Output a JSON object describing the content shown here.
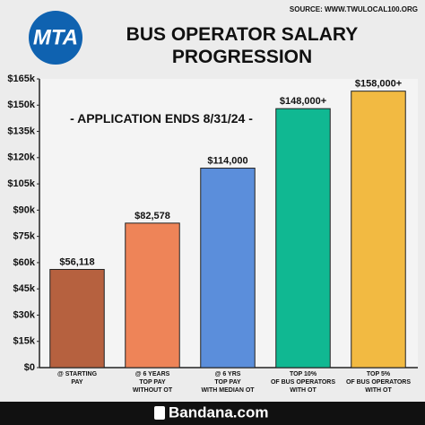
{
  "chart_data": {
    "type": "bar",
    "title": "BUS OPERATOR SALARY\nPROGRESSION",
    "source": "SOURCE: WWW.TWULOCAL100.ORG",
    "logo": "MTA",
    "annotation": "- APPLICATION ENDS 8/31/24 -",
    "footer": "Bandana.com",
    "categories": [
      "@ STARTING\nPAY",
      "@ 6 YEARS\nTOP PAY\nWITHOUT OT",
      "@ 6 YRS\nTOP PAY\nWITH MEDIAN OT",
      "TOP 10%\nOF BUS OPERATORS\nWITH OT",
      "TOP 5%\nOF BUS OPERATORS\nWITH OT"
    ],
    "values": [
      56118,
      82578,
      114000,
      148000,
      158000
    ],
    "value_labels": [
      "$56,118",
      "$82,578",
      "$114,000",
      "$148,000+",
      "$158,000+"
    ],
    "colors": [
      "#b6613f",
      "#ee8458",
      "#5b8edb",
      "#10b892",
      "#f2ba42"
    ],
    "ylim": [
      0,
      165000
    ],
    "yticks": [
      {
        "value": 0,
        "label": "$0"
      },
      {
        "value": 15000,
        "label": "$15k"
      },
      {
        "value": 30000,
        "label": "$30k"
      },
      {
        "value": 45000,
        "label": "$45k"
      },
      {
        "value": 60000,
        "label": "$60k"
      },
      {
        "value": 75000,
        "label": "$75k"
      },
      {
        "value": 90000,
        "label": "$90k"
      },
      {
        "value": 105000,
        "label": "$105k"
      },
      {
        "value": 120000,
        "label": "$120k"
      },
      {
        "value": 135000,
        "label": "$135k"
      },
      {
        "value": 150000,
        "label": "$150k"
      },
      {
        "value": 165000,
        "label": "$165k"
      }
    ],
    "grid": false
  }
}
